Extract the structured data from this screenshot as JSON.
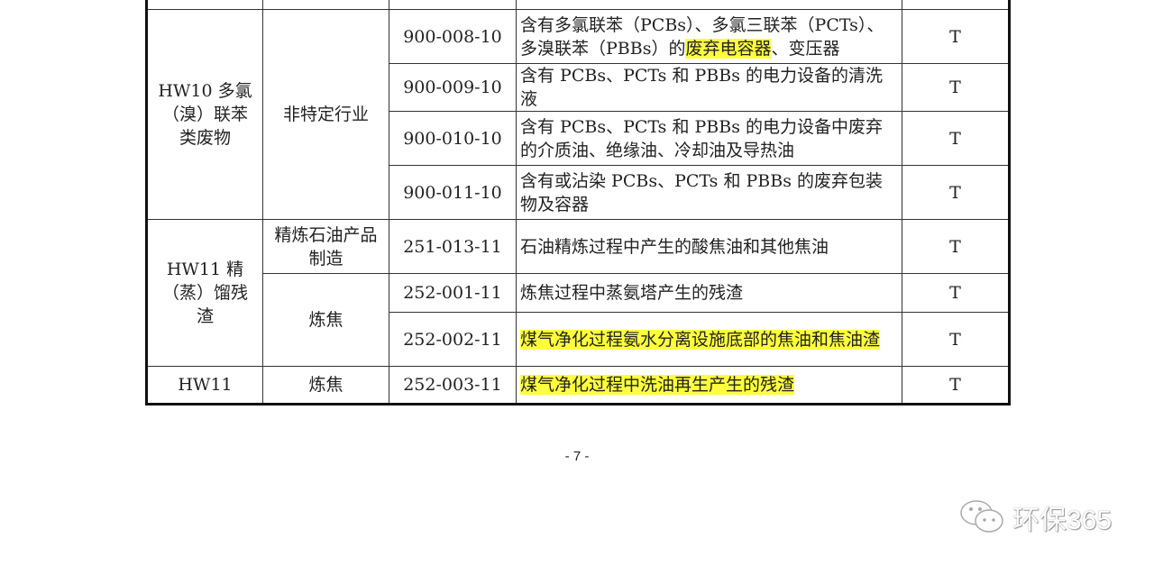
{
  "table": {
    "rows": [
      {
        "code": "900-008-10",
        "desc_a": "含有多氯联苯（PCBs）、多氯三联苯（PCTs）、多溴联苯（PBBs）的",
        "desc_hl": "废弃电容器",
        "desc_b": "、变压器",
        "type": "T"
      },
      {
        "code": "900-009-10",
        "desc_a": "含有 PCBs、PCTs 和 PBBs 的电力设备的清洗液",
        "type": "T"
      },
      {
        "code": "900-010-10",
        "desc_a": "含有 PCBs、PCTs 和 PBBs 的电力设备中废弃的介质油、绝缘油、冷却油及导热油",
        "type": "T"
      },
      {
        "code": "900-011-10",
        "desc_a": "含有或沾染 PCBs、PCTs 和 PBBs 的废弃包装物及容器",
        "type": "T"
      },
      {
        "code": "251-013-11",
        "desc_a": "石油精炼过程中产生的酸焦油和其他焦油",
        "type": "T"
      },
      {
        "code": "252-001-11",
        "desc_a": "炼焦过程中蒸氨塔产生的残渣",
        "type": "T"
      },
      {
        "code": "252-002-11",
        "desc_hl": "煤气净化过程氨水分离设施底部的焦油和焦油渣",
        "type": "T"
      },
      {
        "code": "252-003-11",
        "desc_hl": "煤气净化过程中洗油再生产生的残渣",
        "type": "T"
      }
    ],
    "groups": {
      "hw10": "HW10 多氯（溴）联苯类废物",
      "hw10_industry": "非特定行业",
      "hw11": "HW11 精（蒸）馏残渣",
      "hw11_industry_a": "精炼石油产品制造",
      "hw11_industry_b": "炼焦",
      "hw11_last": "HW11",
      "hw11_last_industry": "炼焦"
    }
  },
  "page_number": "- 7 -",
  "watermark": {
    "icon": "wechat-icon",
    "text": "环保365"
  }
}
